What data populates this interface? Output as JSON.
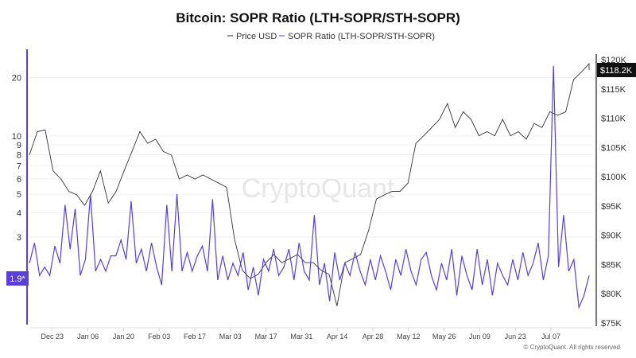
{
  "chart_data": {
    "type": "line",
    "title": "Bitcoin: SOPR Ratio (LTH-SOPR/STH-SOPR)",
    "legend": [
      "Price USD",
      "SOPR Ratio (LTH-SOPR/STH-SOPR)"
    ],
    "legend_position": "top",
    "grid": true,
    "watermark": "CryptoQuant",
    "copyright": "© CryptoQuant. All rights reserved",
    "x_ticks": [
      "Dec 23",
      "Jan 06",
      "Jan 20",
      "Feb 03",
      "Feb 17",
      "Mar 03",
      "Mar 17",
      "Mar 31",
      "Apr 14",
      "Apr 28",
      "May 12",
      "May 26",
      "Jun 09",
      "Jun 23",
      "Jul 07"
    ],
    "x_range": [
      "2024-12-14",
      "2025-07-22"
    ],
    "left_axis": {
      "scale": "log",
      "ticks": [
        "20",
        "10",
        "9",
        "8",
        "7",
        "6",
        "5",
        "4",
        "3"
      ],
      "tick_values": [
        20,
        10,
        9,
        8,
        7,
        6,
        5,
        4,
        3
      ],
      "range": [
        1.06,
        28
      ],
      "current_label": "1.9*",
      "color": "#5b3fd6"
    },
    "right_axis": {
      "scale": "linear",
      "ticks": [
        "$120K",
        "$115K",
        "$110K",
        "$105K",
        "$100K",
        "$95K",
        "$90K",
        "$85K",
        "$80K",
        "$75K"
      ],
      "tick_values": [
        120,
        115,
        110,
        105,
        100,
        95,
        90,
        85,
        80,
        75
      ],
      "range": [
        75,
        120
      ],
      "current_label": "$118.2K"
    },
    "series": [
      {
        "name": "SOPR Ratio (LTH-SOPR/STH-SOPR)",
        "axis": "left",
        "color": "#5b3fd6",
        "x_start": "2024-12-14",
        "x_step_days": 2,
        "values": [
          2.2,
          2.8,
          1.9,
          2.1,
          1.9,
          2.7,
          2.2,
          4.4,
          2.6,
          4.2,
          1.9,
          2.3,
          5.0,
          2.0,
          2.3,
          2.0,
          2.4,
          2.4,
          2.9,
          2.3,
          4.6,
          2.2,
          2.6,
          2.0,
          2.8,
          2.1,
          1.7,
          4.4,
          2.0,
          5.0,
          2.0,
          2.5,
          2.0,
          2.4,
          2.7,
          2.0,
          4.7,
          1.8,
          2.4,
          1.8,
          2.2,
          1.9,
          2.5,
          1.6,
          2.1,
          1.5,
          2.3,
          2.0,
          2.6,
          1.9,
          2.1,
          2.6,
          1.8,
          2.8,
          2.0,
          1.8,
          3.9,
          1.7,
          2.2,
          1.4,
          2.5,
          1.8,
          2.2,
          1.9,
          2.5,
          2.0,
          1.7,
          2.3,
          1.8,
          2.4,
          2.0,
          1.6,
          2.3,
          1.9,
          2.6,
          2.0,
          1.7,
          2.3,
          2.5,
          1.9,
          1.6,
          2.2,
          1.8,
          2.6,
          1.5,
          2.4,
          1.9,
          1.6,
          2.6,
          1.7,
          2.3,
          1.5,
          2.2,
          1.9,
          1.7,
          2.3,
          1.8,
          2.5,
          1.9,
          2.2,
          2.8,
          1.8,
          2.4,
          23,
          2.1,
          3.9,
          2.0,
          2.3,
          1.3,
          1.5,
          1.9
        ]
      },
      {
        "name": "Price USD",
        "axis": "right",
        "color": "#333333",
        "unit": "$K",
        "x_start": "2024-12-14",
        "x_step_days": 3.1,
        "values": [
          103.7,
          107.7,
          108,
          101,
          99.6,
          97.5,
          96.9,
          95.1,
          97.5,
          101,
          95.5,
          97.5,
          101,
          104.3,
          107.7,
          105.7,
          106.4,
          104.3,
          103.7,
          99.6,
          100.3,
          99.6,
          100.3,
          99.6,
          98.9,
          98.2,
          89.4,
          84,
          82.6,
          83.3,
          85.3,
          86.7,
          85.3,
          86,
          86.7,
          85.3,
          85.3,
          84,
          83.3,
          77.9,
          85.3,
          86,
          86.7,
          90.8,
          96.2,
          96.9,
          97.5,
          97.5,
          98.9,
          105.7,
          107,
          108.4,
          109.8,
          112.5,
          108.4,
          111.1,
          109.8,
          107,
          107.7,
          107,
          109.8,
          107,
          107.7,
          106.4,
          109.1,
          108.4,
          111.1,
          110.5,
          111.1,
          116.6,
          117.9,
          119.3,
          118.2
        ]
      }
    ]
  }
}
